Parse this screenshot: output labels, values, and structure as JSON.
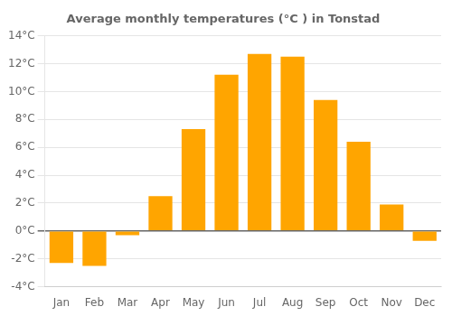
{
  "chart_data": {
    "type": "bar",
    "title": "Average monthly temperatures (°C ) in Tonstad",
    "categories": [
      "Jan",
      "Feb",
      "Mar",
      "Apr",
      "May",
      "Jun",
      "Jul",
      "Aug",
      "Sep",
      "Oct",
      "Nov",
      "Dec"
    ],
    "values": [
      -2.3,
      -2.5,
      -0.3,
      2.5,
      7.3,
      11.2,
      12.7,
      12.5,
      9.4,
      6.4,
      1.9,
      -0.7
    ],
    "color": "#FFA500",
    "ylim": [
      -4,
      14
    ],
    "yticks": [
      {
        "value": -4,
        "label": "-4°C"
      },
      {
        "value": -2,
        "label": "-2°C"
      },
      {
        "value": 0,
        "label": "0°C"
      },
      {
        "value": 2,
        "label": "2°C"
      },
      {
        "value": 4,
        "label": "4°C"
      },
      {
        "value": 6,
        "label": "6°C"
      },
      {
        "value": 8,
        "label": "8°C"
      },
      {
        "value": 10,
        "label": "10°C"
      },
      {
        "value": 12,
        "label": "12°C"
      },
      {
        "value": 14,
        "label": "14°C"
      }
    ],
    "grid": true
  }
}
